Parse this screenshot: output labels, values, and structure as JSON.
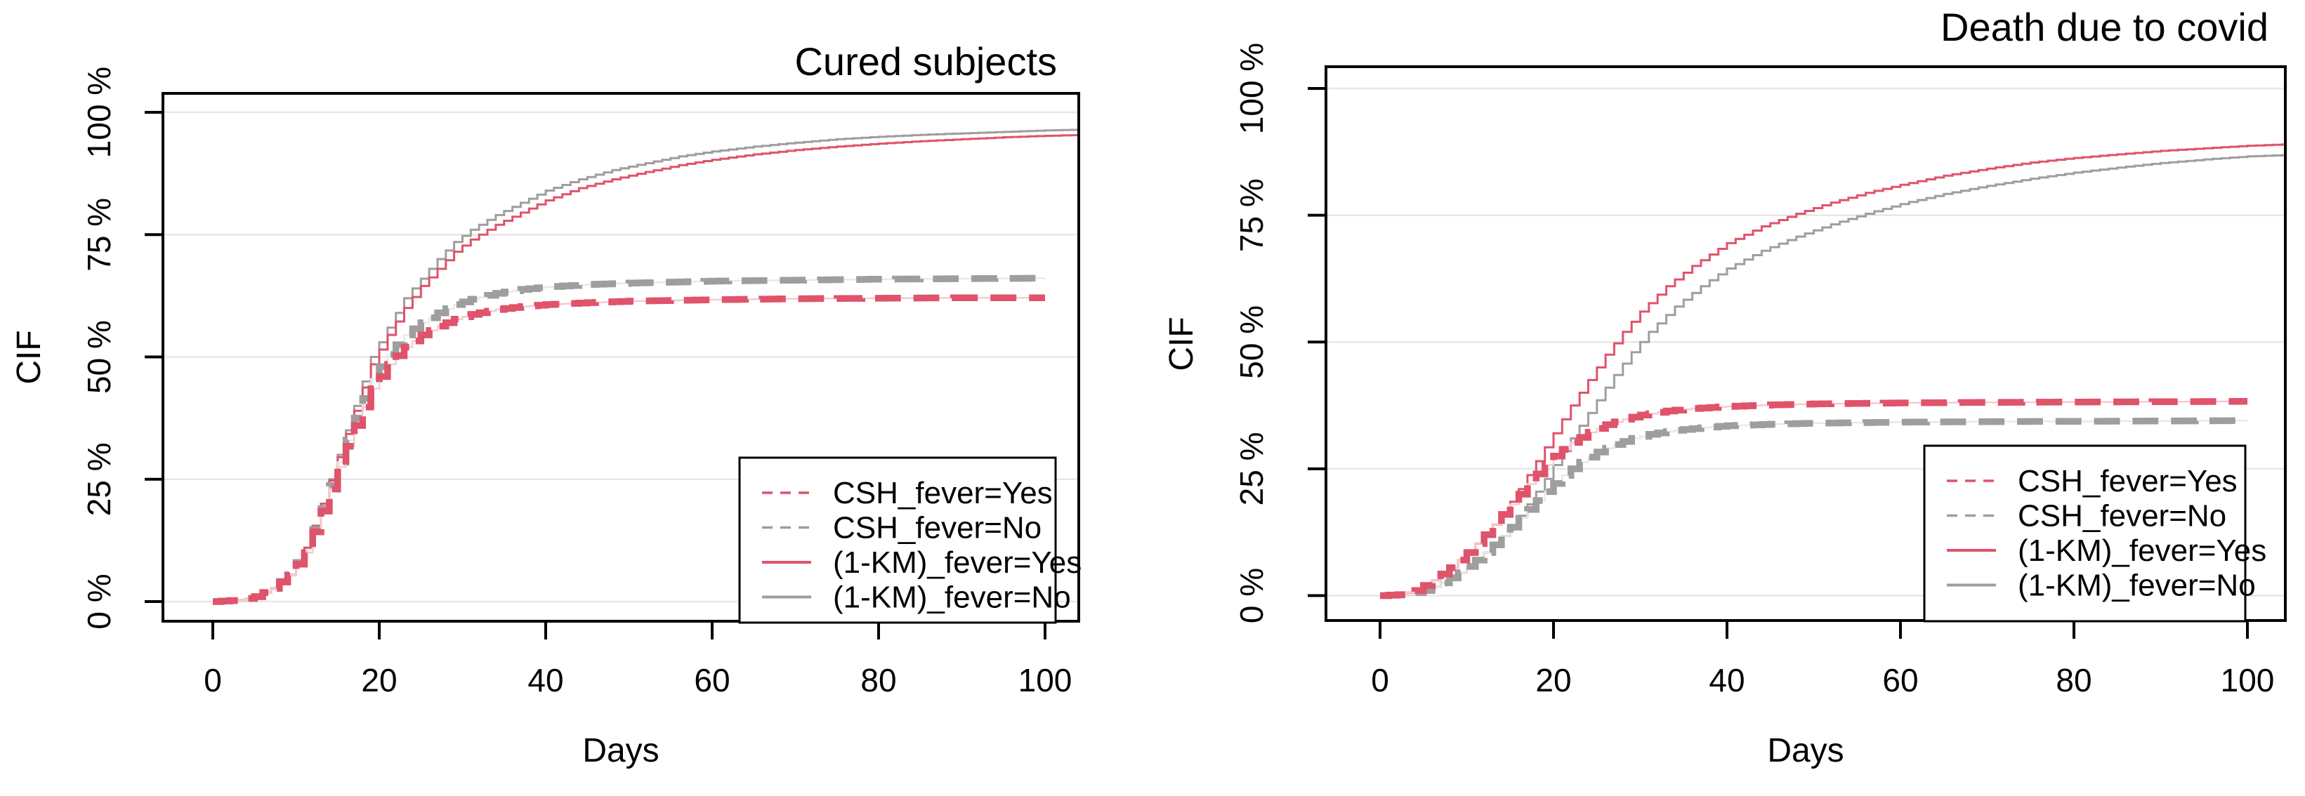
{
  "figure": {
    "background": "#ffffff"
  },
  "colors": {
    "red": "#DF536B",
    "gray": "#9E9E9E",
    "red_faint": "#F5CBD4",
    "gray_faint": "#E9E9E9",
    "grid": "#E7E7E7",
    "axis": "#000000",
    "legend_border": "#000000",
    "legend_fill": "#FFFFFF"
  },
  "chart_data": [
    {
      "type": "line",
      "title": "Cured subjects",
      "xlabel": "Days",
      "ylabel": "CIF",
      "xlim": [
        -6,
        104.8
      ],
      "ylim": [
        0,
        100
      ],
      "grid": true,
      "legend_position": "bottomright",
      "x_ticks": [
        "0",
        "20",
        "40",
        "60",
        "80",
        "100"
      ],
      "x_tick_values": [
        0,
        20,
        40,
        60,
        80,
        100
      ],
      "y_ticks": [
        "0 %",
        "25 %",
        "50 %",
        "75 %",
        "100 %"
      ],
      "y_tick_values": [
        0,
        25,
        50,
        75,
        100
      ],
      "series": [
        {
          "id": "km-no",
          "name": "(1-KM)_fever=No",
          "color": "gray",
          "style": "solid",
          "points": [
            [
              0,
              0
            ],
            [
              3,
              0.3
            ],
            [
              5,
              1
            ],
            [
              7,
              2.7
            ],
            [
              9,
              5.5
            ],
            [
              11,
              11
            ],
            [
              13,
              20
            ],
            [
              15,
              30
            ],
            [
              17,
              40
            ],
            [
              19,
              50
            ],
            [
              21,
              56
            ],
            [
              23,
              62
            ],
            [
              25,
              66
            ],
            [
              27,
              70
            ],
            [
              29,
              73.5
            ],
            [
              31,
              76
            ],
            [
              34,
              79
            ],
            [
              37,
              81.5
            ],
            [
              40,
              84
            ],
            [
              44,
              86.3
            ],
            [
              48,
              88.2
            ],
            [
              52,
              89.6
            ],
            [
              56,
              91
            ],
            [
              60,
              92
            ],
            [
              65,
              93
            ],
            [
              70,
              93.8
            ],
            [
              75,
              94.5
            ],
            [
              80,
              95
            ],
            [
              85,
              95.4
            ],
            [
              90,
              95.7
            ],
            [
              95,
              96
            ],
            [
              100,
              96.3
            ],
            [
              105,
              96.5
            ]
          ]
        },
        {
          "id": "km-yes",
          "name": "(1-KM)_fever=Yes",
          "color": "red",
          "style": "solid",
          "points": [
            [
              0,
              0
            ],
            [
              3,
              0.3
            ],
            [
              5,
              1
            ],
            [
              7,
              2.7
            ],
            [
              9,
              5.5
            ],
            [
              11,
              11
            ],
            [
              13,
              20
            ],
            [
              15,
              29.5
            ],
            [
              17,
              39
            ],
            [
              19,
              48.5
            ],
            [
              21,
              54.5
            ],
            [
              23,
              60
            ],
            [
              25,
              64.5
            ],
            [
              27,
              68
            ],
            [
              29,
              71.5
            ],
            [
              31,
              74
            ],
            [
              34,
              77
            ],
            [
              37,
              79.5
            ],
            [
              40,
              82
            ],
            [
              44,
              84.5
            ],
            [
              48,
              86.3
            ],
            [
              52,
              87.8
            ],
            [
              56,
              89.2
            ],
            [
              60,
              90.3
            ],
            [
              65,
              91.4
            ],
            [
              70,
              92.3
            ],
            [
              75,
              93
            ],
            [
              80,
              93.6
            ],
            [
              85,
              94.1
            ],
            [
              90,
              94.5
            ],
            [
              95,
              94.9
            ],
            [
              100,
              95.2
            ],
            [
              105,
              95.4
            ]
          ]
        },
        {
          "id": "csh-no",
          "name": "CSH_fever=No",
          "color": "gray",
          "style": "dashed",
          "points": [
            [
              0,
              0
            ],
            [
              3,
              0.3
            ],
            [
              5,
              1
            ],
            [
              7,
              2.7
            ],
            [
              9,
              5.5
            ],
            [
              11,
              10.5
            ],
            [
              13,
              19
            ],
            [
              15,
              28.5
            ],
            [
              17,
              37.5
            ],
            [
              19,
              45.5
            ],
            [
              21,
              50.5
            ],
            [
              23,
              54.5
            ],
            [
              25,
              57
            ],
            [
              27,
              59
            ],
            [
              29,
              60.7
            ],
            [
              31,
              61.8
            ],
            [
              34,
              63
            ],
            [
              37,
              63.8
            ],
            [
              40,
              64.3
            ],
            [
              45,
              64.8
            ],
            [
              50,
              65.1
            ],
            [
              60,
              65.5
            ],
            [
              70,
              65.7
            ],
            [
              80,
              65.9
            ],
            [
              90,
              66
            ],
            [
              100,
              66.1
            ]
          ]
        },
        {
          "id": "csh-yes",
          "name": "CSH_fever=Yes",
          "color": "red",
          "style": "dashed",
          "points": [
            [
              0,
              0
            ],
            [
              3,
              0.3
            ],
            [
              5,
              1
            ],
            [
              7,
              2.7
            ],
            [
              9,
              5.3
            ],
            [
              11,
              10
            ],
            [
              13,
              18.5
            ],
            [
              15,
              27.5
            ],
            [
              17,
              36
            ],
            [
              19,
              43.5
            ],
            [
              21,
              48.5
            ],
            [
              23,
              52
            ],
            [
              25,
              54.5
            ],
            [
              27,
              56.3
            ],
            [
              29,
              57.7
            ],
            [
              31,
              58.7
            ],
            [
              34,
              59.7
            ],
            [
              37,
              60.3
            ],
            [
              40,
              60.7
            ],
            [
              45,
              61.1
            ],
            [
              50,
              61.4
            ],
            [
              60,
              61.7
            ],
            [
              70,
              61.9
            ],
            [
              80,
              62
            ],
            [
              90,
              62.1
            ],
            [
              100,
              62.1
            ]
          ]
        }
      ],
      "legend": [
        {
          "series_id": "csh-yes",
          "label": "CSH_fever=Yes"
        },
        {
          "series_id": "csh-no",
          "label": "CSH_fever=No"
        },
        {
          "series_id": "km-yes",
          "label": "(1-KM)_fever=Yes"
        },
        {
          "series_id": "km-no",
          "label": "(1-KM)_fever=No"
        }
      ]
    },
    {
      "type": "line",
      "title": "Death due to covid",
      "xlabel": "Days",
      "ylabel": "CIF",
      "xlim": [
        -6,
        104.8
      ],
      "ylim": [
        0,
        100
      ],
      "grid": true,
      "legend_position": "bottomright",
      "x_ticks": [
        "0",
        "20",
        "40",
        "60",
        "80",
        "100"
      ],
      "x_tick_values": [
        0,
        20,
        40,
        60,
        80,
        100
      ],
      "y_ticks": [
        "0 %",
        "25 %",
        "50 %",
        "75 %",
        "100 %"
      ],
      "y_tick_values": [
        0,
        25,
        50,
        75,
        100
      ],
      "series": [
        {
          "id": "km-no",
          "name": "(1-KM)_fever=No",
          "color": "gray",
          "style": "solid",
          "points": [
            [
              0,
              0
            ],
            [
              3,
              0.2
            ],
            [
              5,
              1
            ],
            [
              7,
              2.5
            ],
            [
              9,
              4.5
            ],
            [
              11,
              7
            ],
            [
              13,
              10
            ],
            [
              15,
              13.5
            ],
            [
              17,
              18
            ],
            [
              19,
              23
            ],
            [
              21,
              28.5
            ],
            [
              23,
              33.5
            ],
            [
              25,
              38.5
            ],
            [
              27,
              43.5
            ],
            [
              29,
              48
            ],
            [
              31,
              52
            ],
            [
              34,
              57
            ],
            [
              37,
              61
            ],
            [
              40,
              64.5
            ],
            [
              44,
              68
            ],
            [
              48,
              70.8
            ],
            [
              52,
              73.2
            ],
            [
              56,
              75.3
            ],
            [
              60,
              77.2
            ],
            [
              65,
              79.2
            ],
            [
              70,
              80.8
            ],
            [
              75,
              82.2
            ],
            [
              80,
              83.4
            ],
            [
              85,
              84.4
            ],
            [
              90,
              85.3
            ],
            [
              95,
              86
            ],
            [
              100,
              86.6
            ],
            [
              105,
              86.9
            ]
          ]
        },
        {
          "id": "km-yes",
          "name": "(1-KM)_fever=Yes",
          "color": "red",
          "style": "solid",
          "points": [
            [
              0,
              0
            ],
            [
              2,
              0.2
            ],
            [
              4,
              1
            ],
            [
              6,
              3
            ],
            [
              8,
              5.5
            ],
            [
              10,
              8.5
            ],
            [
              12,
              12
            ],
            [
              14,
              16
            ],
            [
              16,
              21
            ],
            [
              18,
              26.5
            ],
            [
              20,
              32
            ],
            [
              22,
              37.5
            ],
            [
              24,
              42.5
            ],
            [
              26,
              47.5
            ],
            [
              28,
              52
            ],
            [
              30,
              56
            ],
            [
              33,
              61
            ],
            [
              36,
              65
            ],
            [
              40,
              69.5
            ],
            [
              44,
              72.8
            ],
            [
              48,
              75.3
            ],
            [
              52,
              77.5
            ],
            [
              56,
              79.4
            ],
            [
              60,
              81
            ],
            [
              65,
              82.8
            ],
            [
              70,
              84.2
            ],
            [
              75,
              85.4
            ],
            [
              80,
              86.3
            ],
            [
              85,
              87
            ],
            [
              90,
              87.7
            ],
            [
              95,
              88.2
            ],
            [
              100,
              88.7
            ],
            [
              105,
              89
            ]
          ]
        },
        {
          "id": "csh-no",
          "name": "CSH_fever=No",
          "color": "gray",
          "style": "dashed",
          "points": [
            [
              0,
              0
            ],
            [
              3,
              0.2
            ],
            [
              5,
              1
            ],
            [
              7,
              2.5
            ],
            [
              9,
              4.5
            ],
            [
              11,
              7
            ],
            [
              13,
              10
            ],
            [
              15,
              13.5
            ],
            [
              17,
              17
            ],
            [
              19,
              20.5
            ],
            [
              21,
              23.7
            ],
            [
              23,
              26.3
            ],
            [
              25,
              28.3
            ],
            [
              27,
              29.8
            ],
            [
              29,
              31
            ],
            [
              31,
              31.8
            ],
            [
              34,
              32.6
            ],
            [
              37,
              33.1
            ],
            [
              40,
              33.5
            ],
            [
              45,
              33.8
            ],
            [
              50,
              34
            ],
            [
              60,
              34.2
            ],
            [
              70,
              34.3
            ],
            [
              85,
              34.4
            ],
            [
              100,
              34.5
            ]
          ]
        },
        {
          "id": "csh-yes",
          "name": "CSH_fever=Yes",
          "color": "red",
          "style": "dashed",
          "points": [
            [
              0,
              0
            ],
            [
              2,
              0.2
            ],
            [
              4,
              1
            ],
            [
              6,
              3
            ],
            [
              8,
              5.5
            ],
            [
              10,
              8.5
            ],
            [
              12,
              12
            ],
            [
              14,
              16
            ],
            [
              16,
              20
            ],
            [
              18,
              24
            ],
            [
              20,
              27.5
            ],
            [
              22,
              30.2
            ],
            [
              24,
              32.2
            ],
            [
              26,
              33.7
            ],
            [
              28,
              34.8
            ],
            [
              30,
              35.6
            ],
            [
              33,
              36.4
            ],
            [
              36,
              36.9
            ],
            [
              40,
              37.3
            ],
            [
              45,
              37.6
            ],
            [
              50,
              37.8
            ],
            [
              60,
              38
            ],
            [
              70,
              38.1
            ],
            [
              85,
              38.2
            ],
            [
              100,
              38.3
            ]
          ]
        }
      ],
      "legend": [
        {
          "series_id": "csh-yes",
          "label": "CSH_fever=Yes"
        },
        {
          "series_id": "csh-no",
          "label": "CSH_fever=No"
        },
        {
          "series_id": "km-yes",
          "label": "(1-KM)_fever=Yes"
        },
        {
          "series_id": "km-no",
          "label": "(1-KM)_fever=No"
        }
      ]
    }
  ]
}
